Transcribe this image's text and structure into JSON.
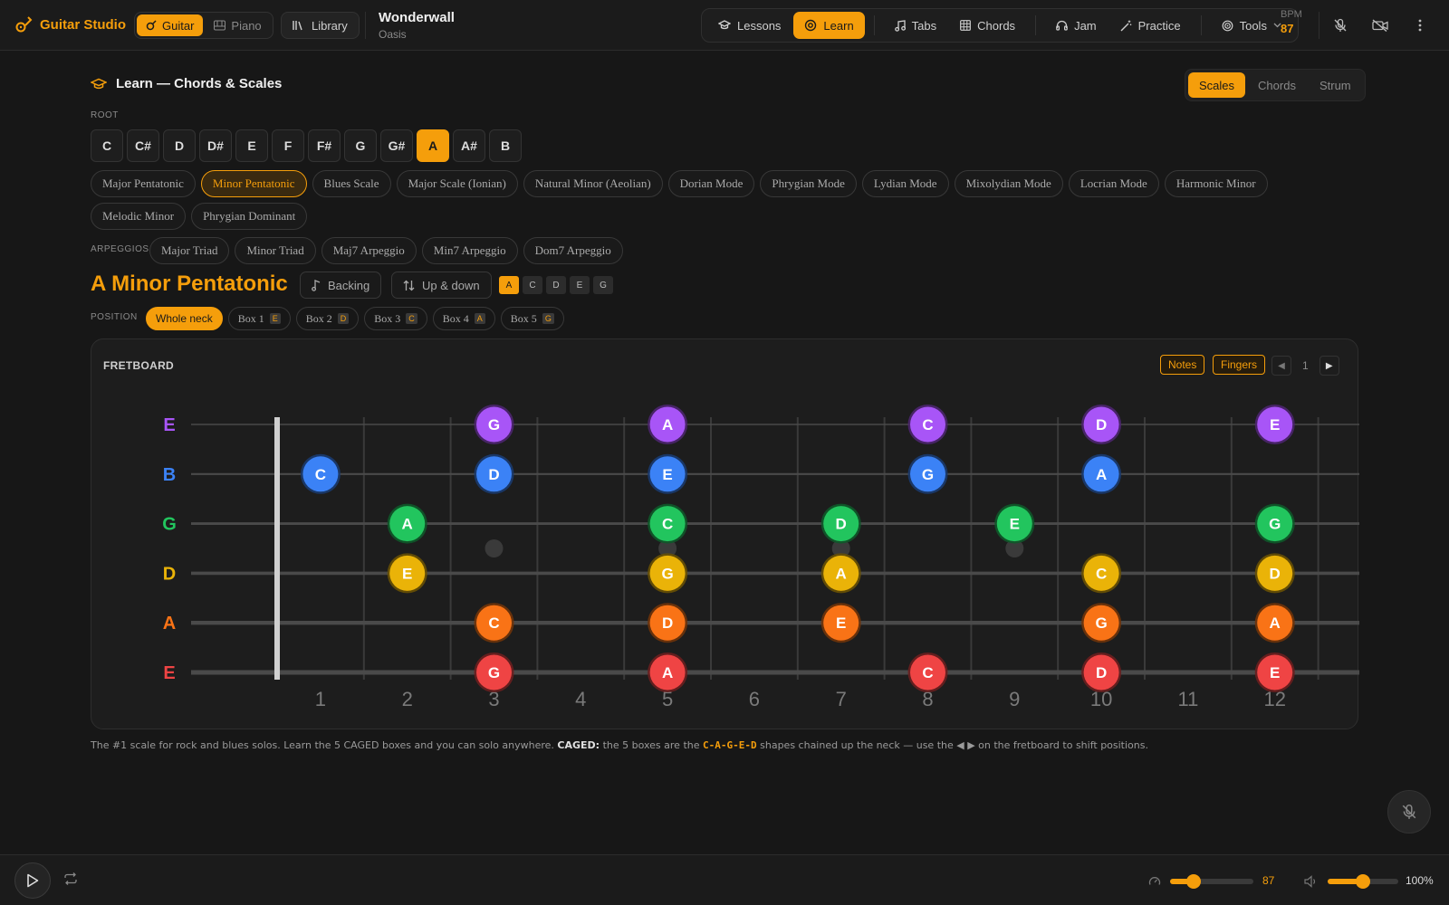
{
  "header": {
    "app_title": "Guitar Studio",
    "instruments": [
      {
        "label": "Guitar",
        "active": true
      },
      {
        "label": "Piano",
        "active": false
      }
    ],
    "library_label": "Library",
    "song": {
      "title": "Wonderwall",
      "artist": "Oasis"
    },
    "nav": [
      {
        "label": "Lessons",
        "icon": "graduation-cap-icon",
        "active": false
      },
      {
        "label": "Learn",
        "icon": "target-icon",
        "active": true
      },
      {
        "label": "Tabs",
        "icon": "music-note-icon",
        "active": false
      },
      {
        "label": "Chords",
        "icon": "grid-icon",
        "active": false
      },
      {
        "label": "Jam",
        "icon": "headphones-icon",
        "active": false
      },
      {
        "label": "Practice",
        "icon": "wand-icon",
        "active": false
      },
      {
        "label": "Tools",
        "icon": "tools-icon",
        "active": false
      }
    ],
    "bpm_label": "BPM",
    "bpm_value": "87"
  },
  "learn": {
    "title": "Learn — Chords & Scales",
    "mode_tabs": [
      {
        "label": "Scales",
        "active": true
      },
      {
        "label": "Chords",
        "active": false
      },
      {
        "label": "Strum",
        "active": false
      }
    ],
    "root_label": "ROOT",
    "roots": [
      "C",
      "C#",
      "D",
      "D#",
      "E",
      "F",
      "F#",
      "G",
      "G#",
      "A",
      "A#",
      "B"
    ],
    "selected_root": "A",
    "scales": [
      "Major Pentatonic",
      "Minor Pentatonic",
      "Blues Scale",
      "Major Scale (Ionian)",
      "Natural Minor (Aeolian)",
      "Dorian Mode",
      "Phrygian Mode",
      "Lydian Mode",
      "Mixolydian Mode",
      "Locrian Mode",
      "Harmonic Minor",
      "Melodic Minor",
      "Phrygian Dominant"
    ],
    "selected_scale": "Minor Pentatonic",
    "arpeggios_label": "ARPEGGIOS",
    "arpeggios": [
      "Major Triad",
      "Minor Triad",
      "Maj7 Arpeggio",
      "Min7 Arpeggio",
      "Dom7 Arpeggio"
    ],
    "scale_title": "A Minor Pentatonic",
    "backing_label": "Backing",
    "direction_label": "Up & down",
    "scale_notes": [
      "A",
      "C",
      "D",
      "E",
      "G"
    ],
    "position_label": "POSITION",
    "positions": [
      {
        "label": "Whole neck",
        "key": "",
        "active": true
      },
      {
        "label": "Box 1",
        "key": "E",
        "active": false
      },
      {
        "label": "Box 2",
        "key": "D",
        "active": false
      },
      {
        "label": "Box 3",
        "key": "C",
        "active": false
      },
      {
        "label": "Box 4",
        "key": "A",
        "active": false
      },
      {
        "label": "Box 5",
        "key": "G",
        "active": false
      }
    ]
  },
  "fretboard": {
    "label": "FRETBOARD",
    "notes_toggle": "Notes",
    "fingers_toggle": "Fingers",
    "page": "1",
    "strings": [
      {
        "name": "E",
        "color": "#a855f7"
      },
      {
        "name": "B",
        "color": "#3b82f6"
      },
      {
        "name": "G",
        "color": "#22c55e"
      },
      {
        "name": "D",
        "color": "#eab308"
      },
      {
        "name": "A",
        "color": "#f97316"
      },
      {
        "name": "E",
        "color": "#ef4444"
      }
    ],
    "fret_numbers": [
      "1",
      "2",
      "3",
      "4",
      "5",
      "6",
      "7",
      "8",
      "9",
      "10",
      "11",
      "12"
    ],
    "inlay_frets": [
      3,
      5,
      7,
      9,
      12
    ],
    "notes": [
      {
        "string": 0,
        "fret": 3,
        "note": "G"
      },
      {
        "string": 0,
        "fret": 5,
        "note": "A"
      },
      {
        "string": 0,
        "fret": 8,
        "note": "C"
      },
      {
        "string": 0,
        "fret": 10,
        "note": "D"
      },
      {
        "string": 0,
        "fret": 12,
        "note": "E"
      },
      {
        "string": 1,
        "fret": 1,
        "note": "C"
      },
      {
        "string": 1,
        "fret": 3,
        "note": "D"
      },
      {
        "string": 1,
        "fret": 5,
        "note": "E"
      },
      {
        "string": 1,
        "fret": 8,
        "note": "G"
      },
      {
        "string": 1,
        "fret": 10,
        "note": "A"
      },
      {
        "string": 2,
        "fret": 2,
        "note": "A"
      },
      {
        "string": 2,
        "fret": 5,
        "note": "C"
      },
      {
        "string": 2,
        "fret": 7,
        "note": "D"
      },
      {
        "string": 2,
        "fret": 9,
        "note": "E"
      },
      {
        "string": 2,
        "fret": 12,
        "note": "G"
      },
      {
        "string": 3,
        "fret": 2,
        "note": "E"
      },
      {
        "string": 3,
        "fret": 5,
        "note": "G"
      },
      {
        "string": 3,
        "fret": 7,
        "note": "A"
      },
      {
        "string": 3,
        "fret": 10,
        "note": "C"
      },
      {
        "string": 3,
        "fret": 12,
        "note": "D"
      },
      {
        "string": 4,
        "fret": 3,
        "note": "C"
      },
      {
        "string": 4,
        "fret": 5,
        "note": "D"
      },
      {
        "string": 4,
        "fret": 7,
        "note": "E"
      },
      {
        "string": 4,
        "fret": 10,
        "note": "G"
      },
      {
        "string": 4,
        "fret": 12,
        "note": "A"
      },
      {
        "string": 5,
        "fret": 3,
        "note": "G"
      },
      {
        "string": 5,
        "fret": 5,
        "note": "A"
      },
      {
        "string": 5,
        "fret": 8,
        "note": "C"
      },
      {
        "string": 5,
        "fret": 10,
        "note": "D"
      },
      {
        "string": 5,
        "fret": 12,
        "note": "E"
      }
    ]
  },
  "description": {
    "text": "The #1 scale for rock and blues solos. Learn the 5 CAGED boxes and you can solo anywhere.",
    "caged_label": "CAGED:",
    "caged_text_a": "the 5 boxes are the",
    "caged_sequence": "C-A-G-E-D",
    "caged_text_b": "shapes chained up the neck — use the ◀ ▶ on the fretboard to shift positions."
  },
  "footer": {
    "tempo_value": "87",
    "tempo_fraction": 0.28,
    "volume_value": "100%",
    "volume_fraction": 0.5
  },
  "colors": {
    "accent": "#f59e0b",
    "background": "#171717"
  }
}
